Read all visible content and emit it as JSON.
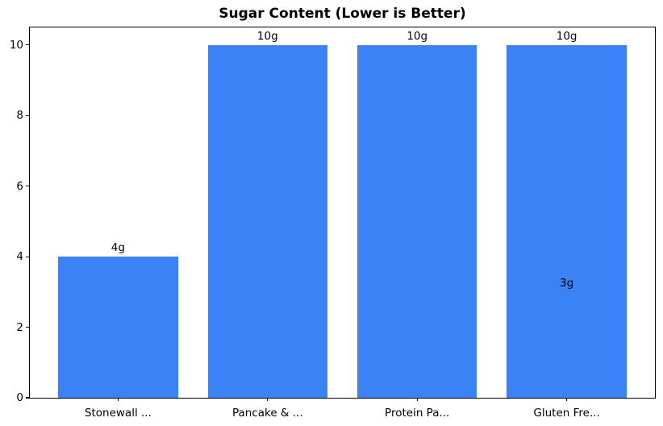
{
  "figure": {
    "title": "Sugar Content (Lower is Better)"
  },
  "chart_data": {
    "type": "bar",
    "title": "Sugar Content (Lower is Better)",
    "categories": [
      "Stonewall ...",
      "Pancake & ...",
      "Protein Pa...",
      "Gluten Fre..."
    ],
    "values": [
      4,
      10,
      10,
      10
    ],
    "bar_labels": [
      "4g",
      "10g",
      "10g",
      "10g"
    ],
    "extra_annotations": [
      {
        "text": "3g",
        "category_index": 3,
        "value": 3
      }
    ],
    "bar_color": "#3b82f6",
    "text_color": "#000000",
    "spine_color": "#000000",
    "xlabel": "",
    "ylabel": "",
    "yticks": [
      0,
      2,
      4,
      6,
      8,
      10
    ],
    "ylim": [
      0,
      10.5
    ],
    "xlim": [
      -0.59,
      3.59
    ],
    "bar_width": 0.8,
    "grid": false,
    "legend": null,
    "background": "#ffffff"
  }
}
